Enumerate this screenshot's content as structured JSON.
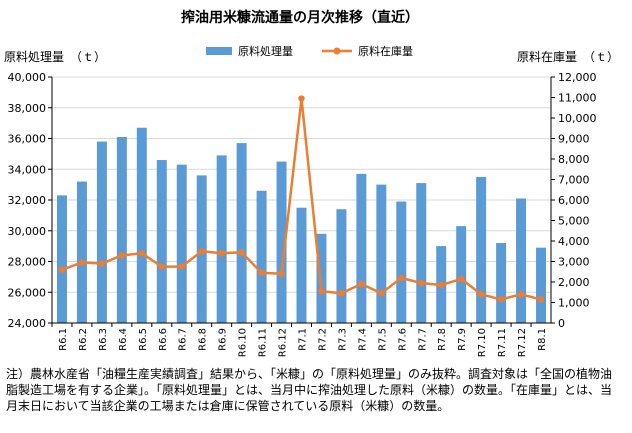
{
  "chart_data": {
    "type": "bar+line",
    "title": "搾油用米糠流通量の月次推移（直近）",
    "y_left_label": "原料処理量　（ｔ）",
    "y_right_label": "原料在庫量　（ｔ）",
    "categories": [
      "R6.1",
      "R6.2",
      "R6.3",
      "R6.4",
      "R6.5",
      "R6.6",
      "R6.7",
      "R6.8",
      "R6.9",
      "R6.10",
      "R6.11",
      "R6.12",
      "R7.1",
      "R7.2",
      "R7.3",
      "R7.4",
      "R7.5",
      "R7.6",
      "R7.7",
      "R7.8",
      "R7.9",
      "R7.10",
      "R7.11",
      "R7.12",
      "R8.1"
    ],
    "series": [
      {
        "name": "原料処理量",
        "type": "bar",
        "axis": "left",
        "color": "#5b9bd5",
        "values": [
          32300,
          33200,
          35800,
          36100,
          36700,
          34600,
          34300,
          33600,
          34900,
          35700,
          32600,
          34500,
          31500,
          29800,
          31400,
          33700,
          33000,
          31900,
          33100,
          29000,
          30300,
          33500,
          29200,
          32100,
          28900
        ]
      },
      {
        "name": "原料在庫量",
        "type": "line",
        "axis": "right",
        "color": "#ed7d31",
        "values": [
          2600,
          2950,
          2900,
          3300,
          3400,
          2750,
          2750,
          3500,
          3400,
          3450,
          2450,
          2400,
          10950,
          1550,
          1450,
          1900,
          1450,
          2200,
          1950,
          1850,
          2150,
          1400,
          1150,
          1400,
          1150
        ]
      }
    ],
    "y_left_ticks": [
      "24,000",
      "26,000",
      "28,000",
      "30,000",
      "32,000",
      "34,000",
      "36,000",
      "38,000",
      "40,000"
    ],
    "y_right_ticks": [
      "0",
      "1,000",
      "2,000",
      "3,000",
      "4,000",
      "5,000",
      "6,000",
      "7,000",
      "8,000",
      "9,000",
      "10,000",
      "11,000",
      "12,000"
    ],
    "ylim_left": [
      24000,
      40000
    ],
    "ylim_right": [
      0,
      12000
    ],
    "legend": "top-center",
    "grid": true
  },
  "note": "注）農林水産省「油糧生産実績調査」結果から、「米糠」の「原料処理量」のみ抜粋。調査対象は「全国の植物油脂製造工場を有する企業」。「原料処理量」とは、当月中に搾油処理した原料（米糠）の数量。「在庫量」とは、当月末日において当該企業の工場または倉庫に保管されている原料（米糠）の数量。"
}
